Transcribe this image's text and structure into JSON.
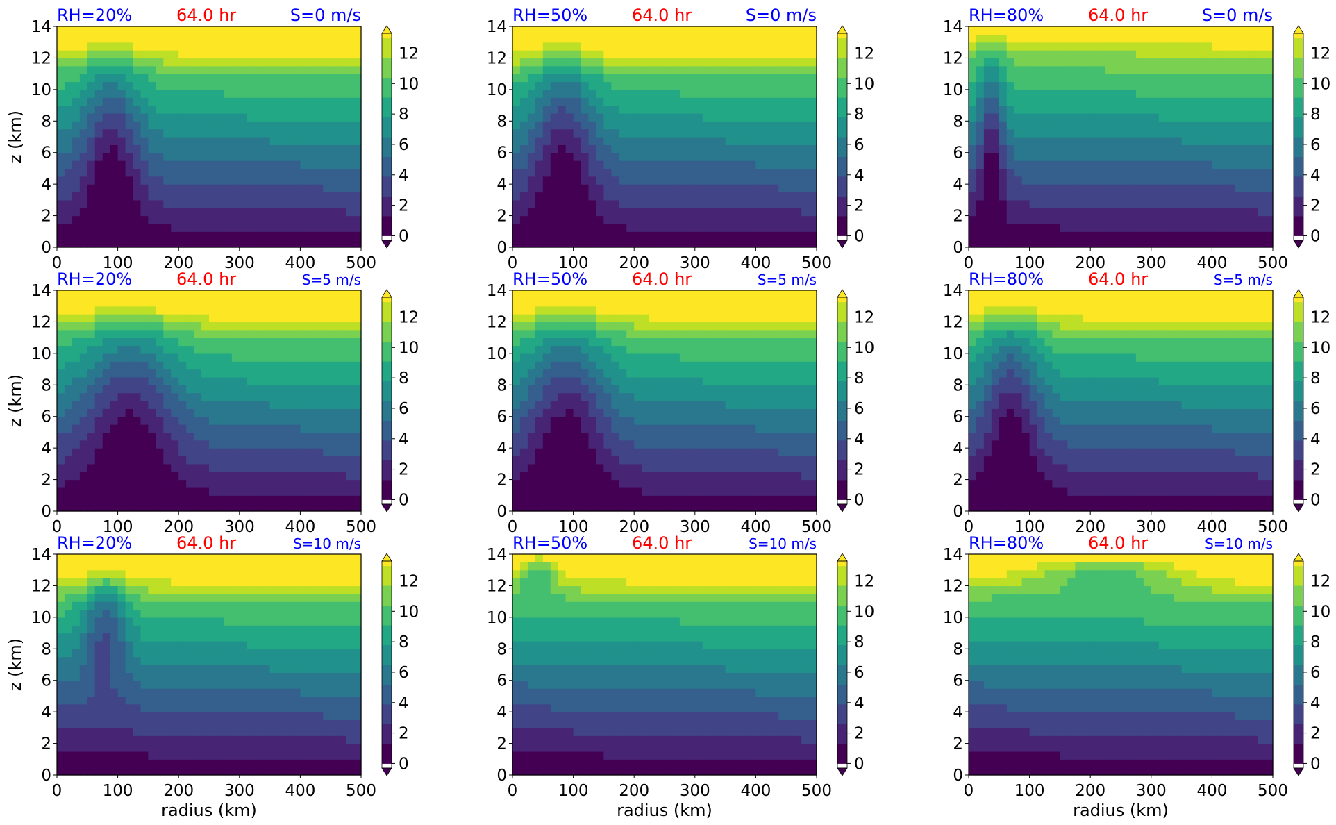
{
  "figure": {
    "time_label": "64.0 hr",
    "colors": {
      "title_rh": "#0000ff",
      "title_time": "#ff0000",
      "title_shear": "#0000ff",
      "axis": "#000000"
    },
    "colormap": [
      "#440154",
      "#482475",
      "#414487",
      "#355f8d",
      "#2a788e",
      "#21918c",
      "#22a884",
      "#44bf70",
      "#7ad151",
      "#bddf26",
      "#fde725"
    ],
    "colorbar": {
      "levels": [
        0,
        2,
        4,
        6,
        8,
        10,
        12
      ],
      "extend": "both"
    }
  },
  "chart_data": [
    {
      "type": "heatmap",
      "rh": "RH=20%",
      "time": "64.0 hr",
      "shear": "S=0 m/s",
      "xlabel": "",
      "ylabel": "z (km)",
      "xlim": [
        0,
        500
      ],
      "ylim": [
        0,
        14
      ],
      "xticks": [
        0,
        100,
        200,
        300,
        400,
        500
      ],
      "yticks": [
        0,
        2,
        4,
        6,
        8,
        10,
        12,
        14
      ],
      "cbar_ticks": [
        0,
        2,
        4,
        6,
        8,
        10,
        12
      ],
      "core": {
        "r": [
          40,
          140
        ],
        "z": [
          0,
          13
        ]
      },
      "anvil_z": 12.5
    },
    {
      "type": "heatmap",
      "rh": "RH=50%",
      "time": "64.0 hr",
      "shear": "S=0 m/s",
      "xlabel": "",
      "ylabel": "",
      "xlim": [
        0,
        500
      ],
      "ylim": [
        0,
        14
      ],
      "xticks": [
        0,
        100,
        200,
        300,
        400,
        500
      ],
      "yticks": [
        0,
        2,
        4,
        6,
        8,
        10,
        12,
        14
      ],
      "cbar_ticks": [
        0,
        2,
        4,
        6,
        8,
        10,
        12
      ],
      "core": {
        "r": [
          30,
          140
        ],
        "z": [
          0,
          13.5
        ]
      },
      "anvil_z": 12.2
    },
    {
      "type": "heatmap",
      "rh": "RH=80%",
      "time": "64.0 hr",
      "shear": "S=0 m/s",
      "xlabel": "",
      "ylabel": "",
      "xlim": [
        0,
        500
      ],
      "ylim": [
        0,
        14
      ],
      "xticks": [
        0,
        100,
        200,
        300,
        400,
        500
      ],
      "yticks": [
        0,
        2,
        4,
        6,
        8,
        10,
        12,
        14
      ],
      "cbar_ticks": [
        0,
        2,
        4,
        6,
        8,
        10,
        12
      ],
      "core": {
        "r": [
          15,
          60
        ],
        "z": [
          0,
          14
        ]
      },
      "anvil_z": 13.5
    },
    {
      "type": "heatmap",
      "rh": "RH=20%",
      "time": "64.0 hr",
      "shear": "S=5 m/s",
      "xlabel": "",
      "ylabel": "z (km)",
      "xlim": [
        0,
        500
      ],
      "ylim": [
        0,
        14
      ],
      "xticks": [
        0,
        100,
        200,
        300,
        400,
        500
      ],
      "yticks": [
        0,
        2,
        4,
        6,
        8,
        10,
        12,
        14
      ],
      "cbar_ticks": [
        0,
        2,
        4,
        6,
        8,
        10,
        12
      ],
      "core": {
        "r": [
          40,
          200
        ],
        "z": [
          0,
          13
        ]
      },
      "anvil_z": 12.5
    },
    {
      "type": "heatmap",
      "rh": "RH=50%",
      "time": "64.0 hr",
      "shear": "S=5 m/s",
      "xlabel": "",
      "ylabel": "",
      "xlim": [
        0,
        500
      ],
      "ylim": [
        0,
        14
      ],
      "xticks": [
        0,
        100,
        200,
        300,
        400,
        500
      ],
      "yticks": [
        0,
        2,
        4,
        6,
        8,
        10,
        12,
        14
      ],
      "cbar_ticks": [
        0,
        2,
        4,
        6,
        8,
        10,
        12
      ],
      "core": {
        "r": [
          20,
          160
        ],
        "z": [
          0,
          13
        ]
      },
      "anvil_z": 12.5
    },
    {
      "type": "heatmap",
      "rh": "RH=80%",
      "time": "64.0 hr",
      "shear": "S=5 m/s",
      "xlabel": "",
      "ylabel": "",
      "xlim": [
        0,
        500
      ],
      "ylim": [
        0,
        14
      ],
      "xticks": [
        0,
        100,
        200,
        300,
        400,
        500
      ],
      "yticks": [
        0,
        2,
        4,
        6,
        8,
        10,
        12,
        14
      ],
      "cbar_ticks": [
        0,
        2,
        4,
        6,
        8,
        10,
        12
      ],
      "core": {
        "r": [
          20,
          120
        ],
        "z": [
          0,
          13.5
        ]
      },
      "anvil_z": 12.5
    },
    {
      "type": "heatmap",
      "rh": "RH=20%",
      "time": "64.0 hr",
      "shear": "S=10 m/s",
      "xlabel": "radius (km)",
      "ylabel": "z (km)",
      "xlim": [
        0,
        500
      ],
      "ylim": [
        0,
        14
      ],
      "xticks": [
        0,
        100,
        200,
        300,
        400,
        500
      ],
      "yticks": [
        0,
        2,
        4,
        6,
        8,
        10,
        12,
        14
      ],
      "cbar_ticks": [
        0,
        2,
        4,
        6,
        8,
        10,
        12
      ],
      "core": {
        "r": [
          40,
          120
        ],
        "z": [
          6,
          13
        ]
      },
      "anvil_z": 12.5
    },
    {
      "type": "heatmap",
      "rh": "RH=50%",
      "time": "64.0 hr",
      "shear": "S=10 m/s",
      "xlabel": "radius (km)",
      "ylabel": "",
      "xlim": [
        0,
        500
      ],
      "ylim": [
        0,
        14
      ],
      "xticks": [
        0,
        100,
        200,
        300,
        400,
        500
      ],
      "yticks": [
        0,
        2,
        4,
        6,
        8,
        10,
        12,
        14
      ],
      "cbar_ticks": [
        0,
        2,
        4,
        6,
        8,
        10,
        12
      ],
      "core": {
        "r": [
          0,
          80
        ],
        "z": [
          12,
          14
        ]
      },
      "anvil_z": 12.5
    },
    {
      "type": "heatmap",
      "rh": "RH=80%",
      "time": "64.0 hr",
      "shear": "S=10 m/s",
      "xlabel": "radius (km)",
      "ylabel": "",
      "xlim": [
        0,
        500
      ],
      "ylim": [
        0,
        14
      ],
      "xticks": [
        0,
        100,
        200,
        300,
        400,
        500
      ],
      "yticks": [
        0,
        2,
        4,
        6,
        8,
        10,
        12,
        14
      ],
      "cbar_ticks": [
        0,
        2,
        4,
        6,
        8,
        10,
        12
      ],
      "core": {
        "r": [
          80,
          380
        ],
        "z": [
          12,
          14
        ]
      },
      "anvil_z": 12.5
    }
  ]
}
